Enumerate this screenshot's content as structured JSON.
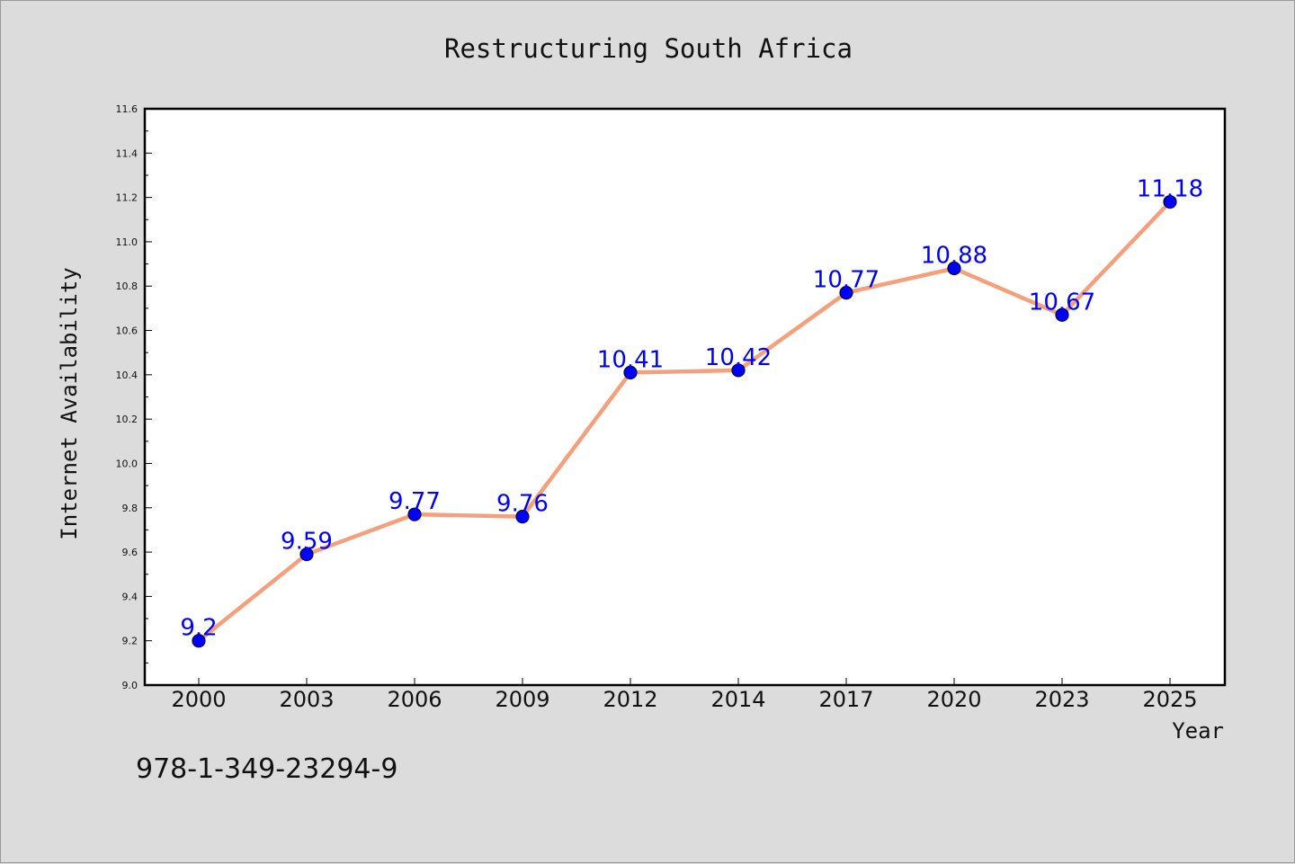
{
  "chart_data": {
    "type": "line",
    "title": "Restructuring South Africa",
    "xlabel": "Year",
    "ylabel": "Internet Availability",
    "categories": [
      "2000",
      "2003",
      "2006",
      "2009",
      "2012",
      "2014",
      "2017",
      "2020",
      "2023",
      "2025"
    ],
    "values": [
      9.2,
      9.59,
      9.77,
      9.76,
      10.41,
      10.42,
      10.77,
      10.88,
      10.67,
      11.18
    ],
    "data_labels": [
      "9.2",
      "9.59",
      "9.77",
      "9.76",
      "10.41",
      "10.42",
      "10.77",
      "10.88",
      "10.67",
      "11.18"
    ],
    "ylim": [
      9.0,
      11.6
    ],
    "yticks": [
      "9.0",
      "9.2",
      "9.4",
      "9.6",
      "9.8",
      "10.0",
      "10.2",
      "10.4",
      "10.6",
      "10.8",
      "11.0",
      "11.2",
      "11.4",
      "11.6"
    ],
    "grid": false,
    "legend": "none",
    "colors": {
      "line": "#f4a07c",
      "marker": "#0000ff",
      "marker_edge": "#000033",
      "data_label": "#0000ff",
      "plot_background": "#ffffff",
      "page_background": "#dcdcdc"
    }
  },
  "footer": {
    "isbn": "978-1-349-23294-9"
  }
}
